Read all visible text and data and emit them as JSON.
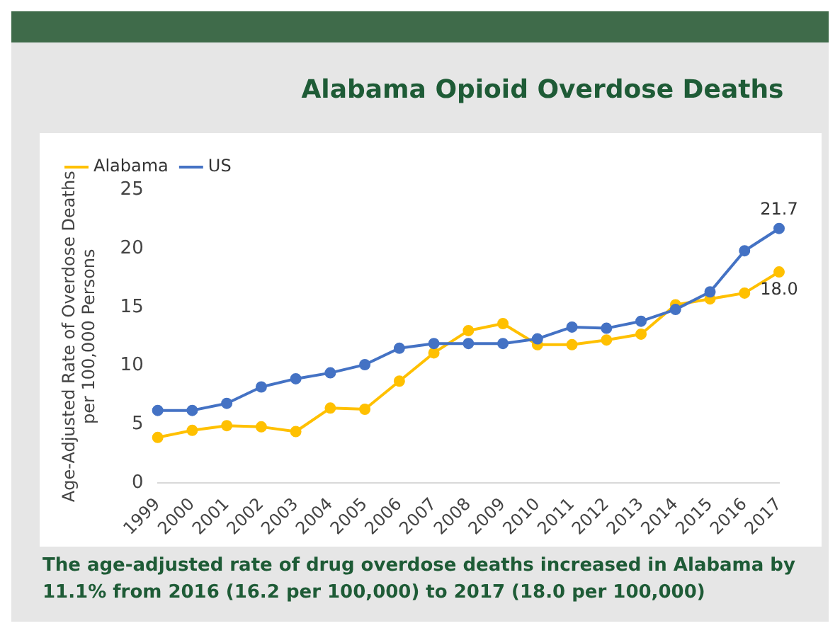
{
  "chart_data": {
    "type": "line",
    "title": "Alabama Opioid Overdose Deaths",
    "ylabel": "Age-Adjusted Rate of Overdose Deaths\nper 100,000 Persons",
    "categories": [
      "1999",
      "2000",
      "2001",
      "2002",
      "2003",
      "2004",
      "2005",
      "2006",
      "2007",
      "2008",
      "2009",
      "2010",
      "2011",
      "2012",
      "2013",
      "2014",
      "2015",
      "2016",
      "2017"
    ],
    "series": [
      {
        "name": "Alabama",
        "color": "#ffc000",
        "values": [
          3.9,
          4.5,
          4.9,
          4.8,
          4.4,
          6.4,
          6.3,
          8.7,
          11.1,
          13.0,
          13.6,
          11.8,
          11.8,
          12.2,
          12.7,
          15.2,
          15.7,
          16.2,
          18.0
        ],
        "value_labels": [
          null,
          null,
          null,
          null,
          null,
          null,
          null,
          null,
          null,
          null,
          null,
          null,
          null,
          null,
          null,
          null,
          null,
          null,
          "18.0"
        ]
      },
      {
        "name": "US",
        "color": "#4472c4",
        "values": [
          6.2,
          6.2,
          6.8,
          8.2,
          8.9,
          9.4,
          10.1,
          11.5,
          11.9,
          11.9,
          11.9,
          12.3,
          13.3,
          13.2,
          13.8,
          14.8,
          16.3,
          19.8,
          21.7
        ],
        "value_labels": [
          null,
          null,
          null,
          null,
          null,
          null,
          null,
          null,
          null,
          null,
          null,
          null,
          null,
          null,
          null,
          null,
          null,
          null,
          "21.7"
        ]
      }
    ],
    "ylim": [
      0,
      25
    ],
    "yticks": [
      0,
      5,
      10,
      15,
      20,
      25
    ],
    "grid": false,
    "legend": "top left",
    "marker": "circle",
    "line_style": "solid",
    "annotations": [
      "The age-adjusted rate of drug overdose deaths increased in Alabama by 11.1% from 2016 (16.2 per 100,000) to 2017 (18.0 per 100,000)"
    ]
  }
}
